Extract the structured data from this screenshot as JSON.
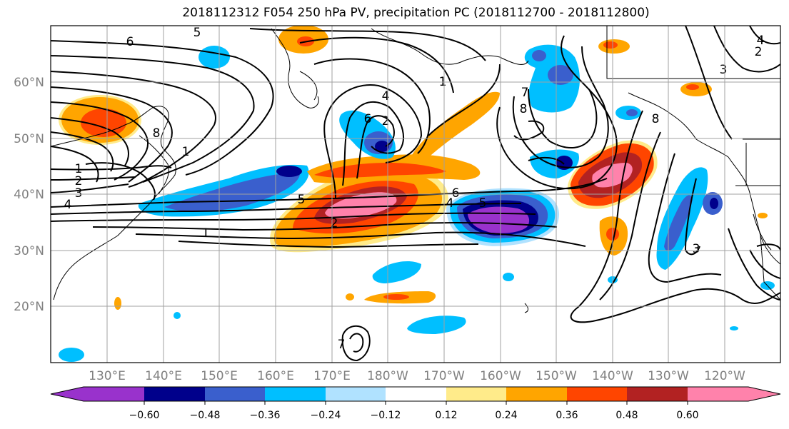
{
  "title": "2018112312 F054 250 hPa PV, precipitation PC (2018112700 - 2018112800)",
  "map": {
    "lon_labels": [
      "130°E",
      "140°E",
      "150°E",
      "160°E",
      "170°E",
      "180°W",
      "170°W",
      "160°W",
      "150°W",
      "140°W",
      "130°W",
      "120°W"
    ],
    "lat_labels": [
      "60°N",
      "50°N",
      "40°N",
      "30°N",
      "20°N"
    ],
    "label_color": "#808080",
    "grid_color": "#a0a0a0"
  },
  "contour_labels": [
    "5",
    "6",
    "8",
    "2",
    "1",
    "7",
    "4",
    "8",
    "6",
    "3",
    "2",
    "1",
    "2",
    "3",
    "4",
    "8",
    "1",
    "1",
    "5",
    "2",
    "6",
    "4",
    "5",
    "3",
    "4",
    "7"
  ],
  "colorbar": {
    "ticks": [
      "−0.60",
      "−0.48",
      "−0.36",
      "−0.24",
      "−0.12",
      "0.12",
      "0.24",
      "0.36",
      "0.48",
      "0.60"
    ],
    "colors": [
      "#9932cc",
      "#00008b",
      "#3a5fcd",
      "#00bfff",
      "#b0e2ff",
      "#ffffff",
      "#ffeb8a",
      "#ffa500",
      "#ff4500",
      "#b22222",
      "#ff82ab"
    ]
  }
}
